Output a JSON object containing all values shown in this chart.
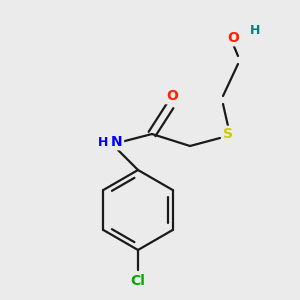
{
  "bg_color": "#ebebeb",
  "bond_color": "#1a1a1a",
  "bond_width": 1.6,
  "atom_colors": {
    "O": "#ff2000",
    "H_O": "#008080",
    "S": "#cccc00",
    "N": "#0000ff",
    "Cl": "#00aa00"
  },
  "font_size": 10,
  "label_bg": "#ebebeb"
}
